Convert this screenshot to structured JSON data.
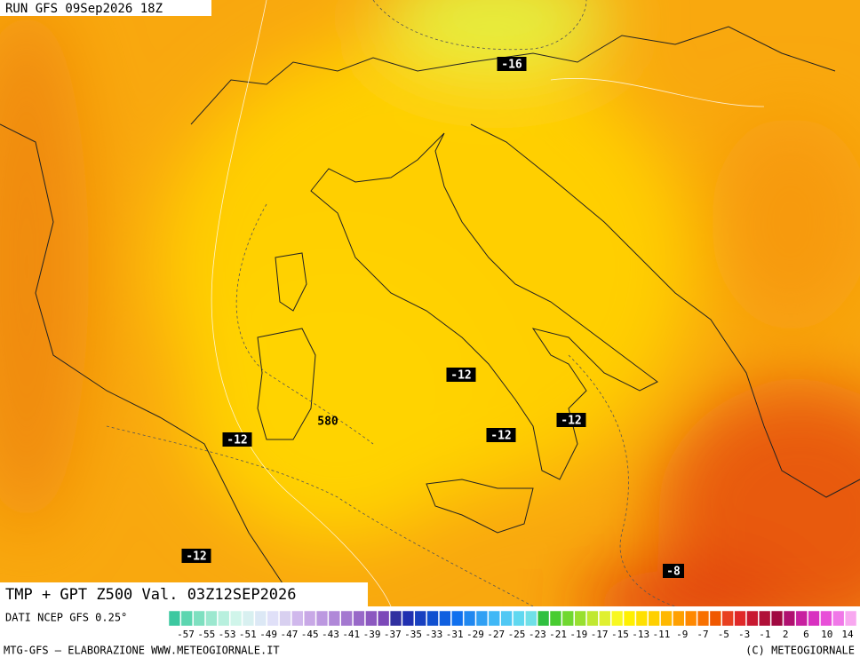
{
  "header": {
    "run": "RUN GFS 09Sep2026 18Z"
  },
  "map": {
    "labels": [
      {
        "text": "-16",
        "style": "box"
      },
      {
        "text": "-12",
        "style": "box"
      },
      {
        "text": "-12",
        "style": "box"
      },
      {
        "text": "-12",
        "style": "box"
      },
      {
        "text": "-12",
        "style": "box"
      },
      {
        "text": "-12",
        "style": "box"
      },
      {
        "text": "-8",
        "style": "box"
      },
      {
        "text": "580",
        "style": "plain"
      }
    ]
  },
  "title": "TMP + GPT Z500 Val. 03Z12SEP2026",
  "source": "DATI NCEP GFS 0.25°",
  "legend": {
    "colors": [
      "#3cc8a0",
      "#5cd6b0",
      "#7ee0c0",
      "#9ce8cf",
      "#b8f0de",
      "#d0f5ea",
      "#d8f0f0",
      "#dce8f5",
      "#e0e0f8",
      "#d8d0f0",
      "#d0b8ec",
      "#c8a8e6",
      "#bc98e0",
      "#b088d8",
      "#a478d0",
      "#9868c8",
      "#8c58c0",
      "#7c48b8",
      "#3030a0",
      "#2030b0",
      "#1840c0",
      "#1050d0",
      "#1060e0",
      "#1070ee",
      "#2088f0",
      "#30a0f4",
      "#40b8f6",
      "#50c8f4",
      "#60d8f0",
      "#70e0e8",
      "#30c040",
      "#48cc30",
      "#70d830",
      "#98e030",
      "#c0e830",
      "#e0f030",
      "#f8f820",
      "#fff000",
      "#ffe000",
      "#ffd000",
      "#ffb800",
      "#ffa000",
      "#ff8800",
      "#f87000",
      "#f05800",
      "#e84020",
      "#e02828",
      "#c81830",
      "#b01038",
      "#a00840",
      "#b01070",
      "#c820a0",
      "#d830c0",
      "#e850d8",
      "#f078e8",
      "#f8a8f0"
    ],
    "labels": [
      "-57",
      "-55",
      "-53",
      "-51",
      "-49",
      "-47",
      "-45",
      "-43",
      "-41",
      "-39",
      "-37",
      "-35",
      "-33",
      "-31",
      "-29",
      "-27",
      "-25",
      "-23",
      "-21",
      "-19",
      "-17",
      "-15",
      "-13",
      "-11",
      "-9",
      "-7",
      "-5",
      "-3",
      "-1",
      "2",
      "6",
      "10",
      "14"
    ]
  },
  "footer": {
    "left": "MTG-GFS — ELABORAZIONE WWW.METEOGIORNALE.IT",
    "right": "(C) METEOGIORNALE"
  }
}
